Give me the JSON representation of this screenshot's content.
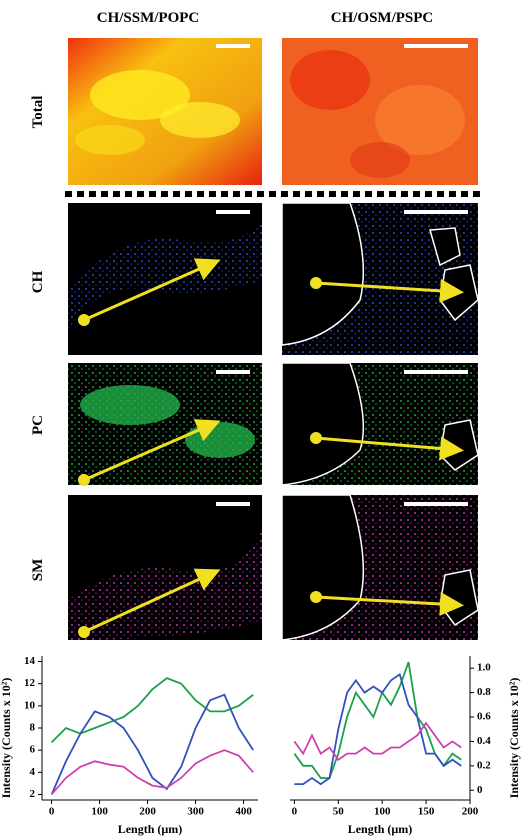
{
  "figure": {
    "columns": [
      "CH/SSM/POPC",
      "CH/OSM/PSPC"
    ],
    "rows": [
      "Total",
      "CH",
      "PC",
      "SM"
    ]
  },
  "chart_data": [
    {
      "type": "line",
      "xlabel": "Length (µm)",
      "ylabel": "Intensity (Counts x 10²)",
      "x": [
        0,
        30,
        60,
        90,
        120,
        150,
        180,
        210,
        240,
        270,
        300,
        330,
        360,
        390,
        420
      ],
      "xlim": [
        -20,
        430
      ],
      "xticks": [
        0,
        100,
        200,
        300,
        400
      ],
      "ylim": [
        1.5,
        14.5
      ],
      "yticks": [
        2,
        4,
        6,
        8,
        10,
        12,
        14
      ],
      "series": [
        {
          "name": "PC",
          "color": "#1aa04a",
          "values": [
            6.7,
            8,
            7.5,
            8,
            8.5,
            9,
            10,
            11.5,
            12.5,
            12,
            10.5,
            9.5,
            9.5,
            10,
            11
          ]
        },
        {
          "name": "CH",
          "color": "#3050c0",
          "values": [
            2,
            5,
            7.5,
            9.5,
            9,
            8,
            6,
            3.5,
            2.5,
            4.5,
            8,
            10.5,
            11,
            8,
            6
          ]
        },
        {
          "name": "SM",
          "color": "#d040b0",
          "values": [
            2,
            3.5,
            4.5,
            5,
            4.7,
            4.5,
            3.5,
            2.8,
            2.6,
            3.5,
            4.8,
            5.5,
            6,
            5.5,
            4
          ]
        }
      ]
    },
    {
      "type": "line",
      "xlabel": "Length (µm)",
      "ylabel": "Intensity (Counts x 10²)",
      "x": [
        0,
        10,
        20,
        30,
        40,
        50,
        60,
        70,
        80,
        90,
        100,
        110,
        120,
        130,
        140,
        150,
        160,
        170,
        180,
        190
      ],
      "xlim": [
        -5,
        200
      ],
      "xticks": [
        0,
        50,
        100,
        150,
        200
      ],
      "ylim": [
        -0.08,
        1.1
      ],
      "yticks": [
        0,
        0.2,
        0.4,
        0.6,
        0.8,
        {
          "value": 1,
          "label": "1.0"
        }
      ],
      "series": [
        {
          "name": "PC",
          "color": "#1aa04a",
          "values": [
            0.3,
            0.2,
            0.2,
            0.1,
            0.1,
            0.3,
            0.6,
            0.8,
            0.7,
            0.6,
            0.8,
            0.7,
            0.85,
            1.05,
            0.6,
            0.5,
            0.3,
            0.2,
            0.3,
            0.25
          ]
        },
        {
          "name": "CH",
          "color": "#3050c0",
          "values": [
            0.05,
            0.05,
            0.1,
            0.05,
            0.1,
            0.5,
            0.8,
            0.9,
            0.8,
            0.85,
            0.8,
            0.9,
            0.95,
            0.7,
            0.6,
            0.3,
            0.3,
            0.2,
            0.25,
            0.2
          ]
        },
        {
          "name": "SM",
          "color": "#d040b0",
          "values": [
            0.4,
            0.3,
            0.45,
            0.3,
            0.35,
            0.25,
            0.3,
            0.3,
            0.35,
            0.3,
            0.3,
            0.35,
            0.35,
            0.4,
            0.45,
            0.55,
            0.45,
            0.35,
            0.4,
            0.35
          ]
        }
      ]
    }
  ]
}
